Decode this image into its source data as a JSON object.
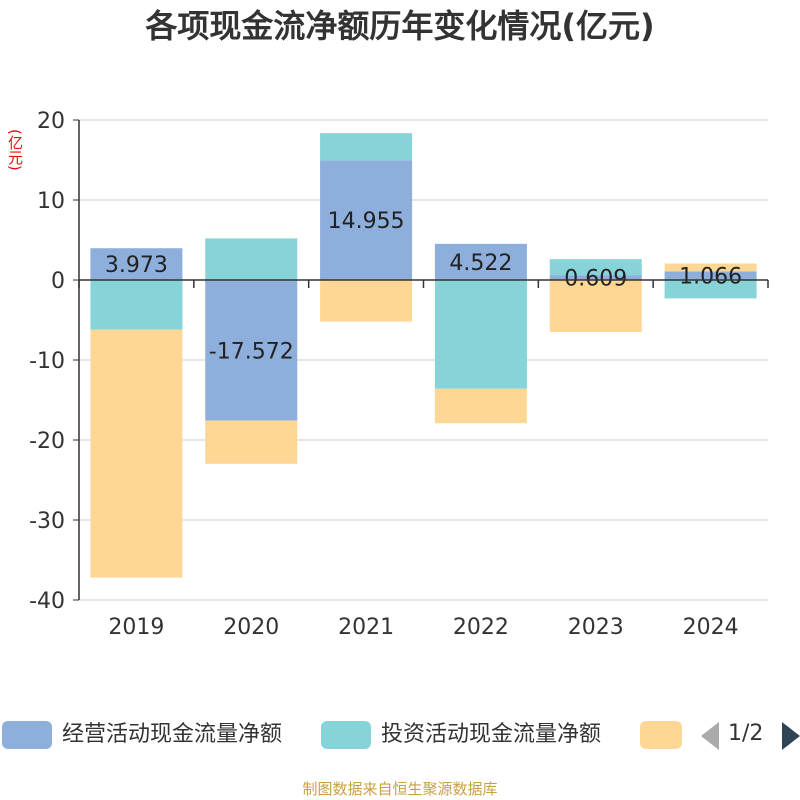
{
  "title": "各项现金流净额历年变化情况(亿元)",
  "y_unit": "(亿元)",
  "source": "制图数据来自恒生聚源数据库",
  "pager": {
    "text": "1/2"
  },
  "colors": {
    "operating": "#8eaedb",
    "investing": "#86d4d8",
    "financing": "#fed795",
    "axis": "#333333",
    "grid": "#cccccc"
  },
  "chart_data": {
    "type": "bar",
    "stacked": true,
    "categories": [
      "2019",
      "2020",
      "2021",
      "2022",
      "2023",
      "2024"
    ],
    "ylim": [
      -40,
      20
    ],
    "yticks": [
      20,
      10,
      0,
      -10,
      -20,
      -30,
      -40
    ],
    "series": [
      {
        "name": "经营活动现金流量净额",
        "values": [
          3.973,
          -17.572,
          14.955,
          4.522,
          0.609,
          1.066
        ]
      },
      {
        "name": "投资活动现金流量净额",
        "values": [
          -6.2,
          5.2,
          3.4,
          -13.6,
          2.0,
          -2.3
        ]
      },
      {
        "name": "",
        "values": [
          -31.0,
          -5.4,
          -5.2,
          -4.3,
          -6.5,
          1.0
        ]
      }
    ],
    "data_labels": [
      "3.973",
      "-17.572",
      "14.955",
      "4.522",
      "0.609",
      "1.066"
    ],
    "legend_position": "bottom",
    "grid": true
  }
}
